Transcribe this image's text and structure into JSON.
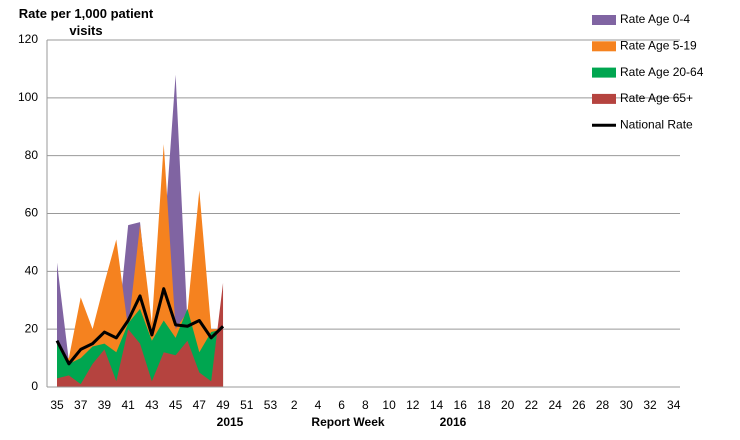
{
  "chart_data": {
    "type": "area",
    "title": "Rate per 1,000 patient visits",
    "x_label": "Report Week",
    "annotations": [
      "2015",
      "2016"
    ],
    "categories": [
      "35",
      null,
      "37",
      null,
      "39",
      null,
      "41",
      null,
      "43",
      null,
      "45",
      null,
      "47",
      null,
      "49",
      null,
      "51",
      null,
      "53",
      null,
      "2",
      null,
      "4",
      null,
      "6",
      null,
      "8",
      null,
      "10",
      null,
      "12",
      null,
      "14",
      null,
      "16",
      null,
      "18",
      null,
      "20",
      null,
      "22",
      null,
      "24",
      null,
      "26",
      null,
      "28",
      null,
      "30",
      null,
      "32",
      null,
      "34"
    ],
    "ylim": [
      0,
      120
    ],
    "yticks": [
      0,
      20,
      40,
      60,
      80,
      100,
      120
    ],
    "grid": true,
    "legend": "top-right",
    "series": [
      {
        "name": "Rate Age 0-4",
        "color": "#8064a2",
        "kind": "area",
        "values": [
          43,
          9,
          15,
          18,
          17,
          15,
          56,
          57,
          18,
          50,
          108,
          22,
          25,
          10,
          20,
          null,
          null,
          null,
          null,
          null,
          null,
          null,
          null,
          null,
          null,
          null,
          null,
          null,
          null,
          null,
          null,
          null,
          null,
          null,
          null,
          null,
          null,
          null,
          null,
          null,
          null,
          null,
          null,
          null,
          null,
          null,
          null,
          null,
          null,
          null,
          null,
          null,
          null
        ]
      },
      {
        "name": "Rate Age 5-19",
        "color": "#f5821f",
        "kind": "area",
        "values": [
          10,
          10,
          31,
          20,
          36,
          51,
          20,
          56,
          22,
          84,
          20,
          26,
          68,
          20,
          20,
          null,
          null,
          null,
          null,
          null,
          null,
          null,
          null,
          null,
          null,
          null,
          null,
          null,
          null,
          null,
          null,
          null,
          null,
          null,
          null,
          null,
          null,
          null,
          null,
          null,
          null,
          null,
          null,
          null,
          null,
          null,
          null,
          null,
          null,
          null,
          null,
          null,
          null
        ]
      },
      {
        "name": "Rate Age 20-64",
        "color": "#00a650",
        "kind": "area",
        "values": [
          15,
          8,
          10,
          14,
          15,
          12,
          22,
          27,
          16,
          23,
          17,
          27,
          12,
          19,
          20,
          null,
          null,
          null,
          null,
          null,
          null,
          null,
          null,
          null,
          null,
          null,
          null,
          null,
          null,
          null,
          null,
          null,
          null,
          null,
          null,
          null,
          null,
          null,
          null,
          null,
          null,
          null,
          null,
          null,
          null,
          null,
          null,
          null,
          null,
          null,
          null,
          null,
          null
        ]
      },
      {
        "name": "Rate Age 65+",
        "color": "#b5433f",
        "kind": "area",
        "values": [
          3,
          4,
          1,
          8,
          13,
          2,
          20,
          15,
          2,
          12,
          11,
          16,
          5,
          2,
          36,
          null,
          null,
          null,
          null,
          null,
          null,
          null,
          null,
          null,
          null,
          null,
          null,
          null,
          null,
          null,
          null,
          null,
          null,
          null,
          null,
          null,
          null,
          null,
          null,
          null,
          null,
          null,
          null,
          null,
          null,
          null,
          null,
          null,
          null,
          null,
          null,
          null,
          null
        ]
      },
      {
        "name": "National Rate",
        "color": "#000000",
        "kind": "line",
        "values": [
          16,
          8,
          13,
          15,
          19,
          17,
          23,
          31.5,
          18,
          34,
          21.5,
          21,
          23,
          17,
          21,
          null,
          null,
          null,
          null,
          null,
          null,
          null,
          null,
          null,
          null,
          null,
          null,
          null,
          null,
          null,
          null,
          null,
          null,
          null,
          null,
          null,
          null,
          null,
          null,
          null,
          null,
          null,
          null,
          null,
          null,
          null,
          null,
          null,
          null,
          null,
          null,
          null,
          null
        ]
      }
    ]
  }
}
